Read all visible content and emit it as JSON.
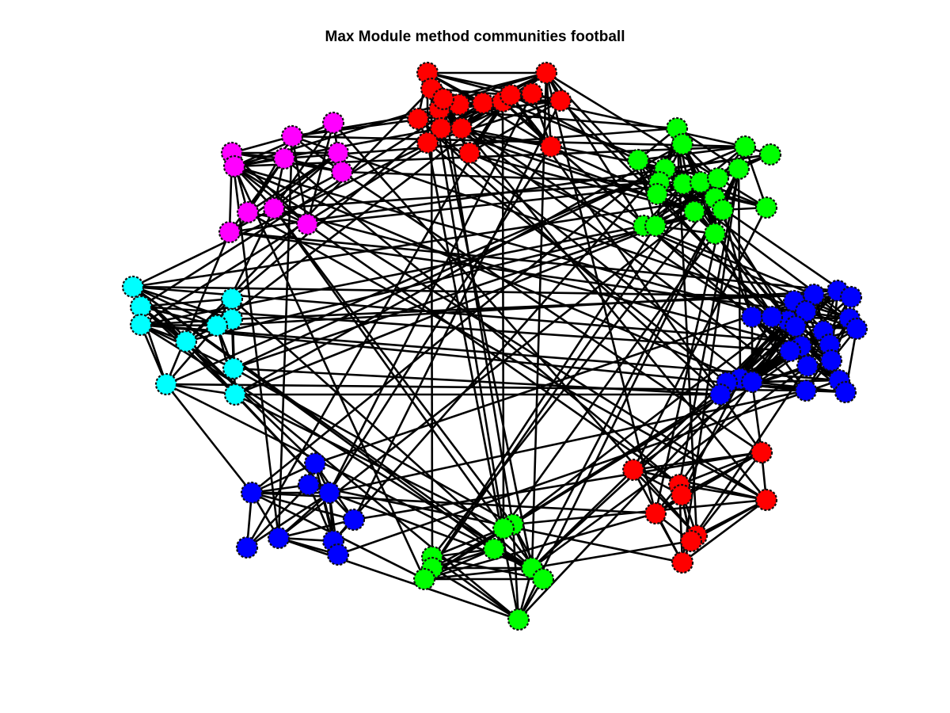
{
  "title": "Max Module method communities football",
  "community_colors": {
    "red": "#ff0000",
    "green": "#00ff00",
    "blue": "#0000ff",
    "magenta": "#ff00ff",
    "cyan": "#00ffff"
  },
  "edge_color": "#000000"
}
